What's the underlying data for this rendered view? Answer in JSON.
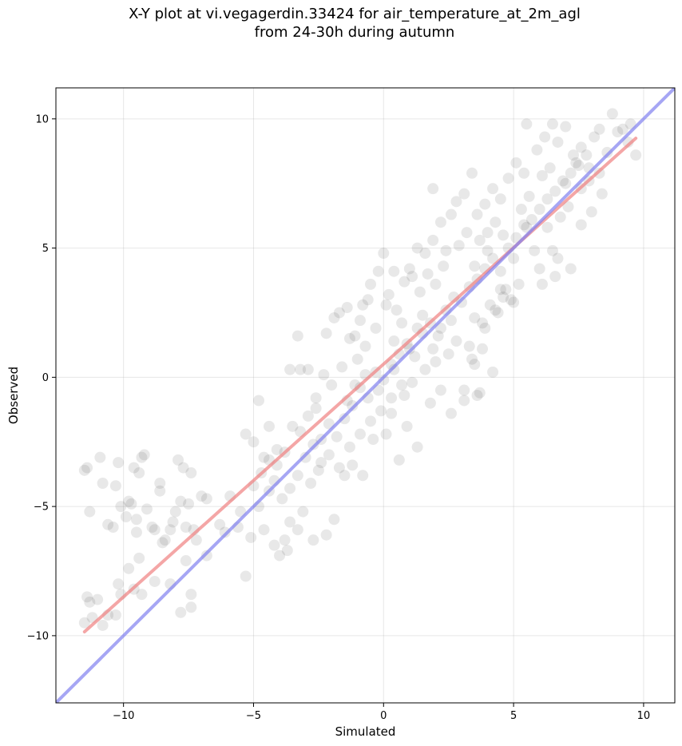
{
  "chart_data": {
    "type": "scatter",
    "title": "X-Y plot at vi.vegagerdin.33424 for air_temperature_at_2m_agl",
    "subtitle": "from 24-30h during autumn",
    "xlabel": "Simulated",
    "ylabel": "Observed",
    "xlim": [
      -12.6,
      11.2
    ],
    "ylim": [
      -12.6,
      11.2
    ],
    "xticks": [
      -10,
      -5,
      0,
      5,
      10
    ],
    "yticks": [
      -10,
      -5,
      0,
      5,
      10
    ],
    "xtick_labels": [
      "−10",
      "−5",
      "0",
      "5",
      "10"
    ],
    "ytick_labels": [
      "−10",
      "−5",
      "0",
      "5",
      "10"
    ],
    "grid": true,
    "point_color": "#000000",
    "point_alpha": 0.09,
    "points": [
      [
        -11.5,
        -3.6
      ],
      [
        -11.4,
        -3.5
      ],
      [
        -11.3,
        -5.2
      ],
      [
        -10.9,
        -3.1
      ],
      [
        -10.8,
        -4.1
      ],
      [
        -10.6,
        -5.7
      ],
      [
        -10.4,
        -5.8
      ],
      [
        -10.3,
        -4.2
      ],
      [
        -10.2,
        -3.3
      ],
      [
        -10.1,
        -5.0
      ],
      [
        -9.9,
        -5.4
      ],
      [
        -9.8,
        -4.8
      ],
      [
        -9.7,
        -4.9
      ],
      [
        -9.6,
        -3.5
      ],
      [
        -9.5,
        -5.5
      ],
      [
        -9.5,
        -6.0
      ],
      [
        -9.4,
        -3.7
      ],
      [
        -9.3,
        -3.1
      ],
      [
        -9.2,
        -3.0
      ],
      [
        -9.1,
        -5.1
      ],
      [
        -8.9,
        -5.8
      ],
      [
        -8.8,
        -5.9
      ],
      [
        -8.6,
        -4.1
      ],
      [
        -8.6,
        -4.4
      ],
      [
        -8.5,
        -6.4
      ],
      [
        -8.4,
        -6.3
      ],
      [
        -8.2,
        -5.9
      ],
      [
        -8.1,
        -5.6
      ],
      [
        -8.0,
        -5.2
      ],
      [
        -7.9,
        -3.2
      ],
      [
        -7.8,
        -4.8
      ],
      [
        -7.7,
        -3.5
      ],
      [
        -7.6,
        -5.8
      ],
      [
        -7.5,
        -4.9
      ],
      [
        -7.4,
        -3.7
      ],
      [
        -7.3,
        -5.9
      ],
      [
        -7.2,
        -6.3
      ],
      [
        -7.0,
        -4.6
      ],
      [
        -6.8,
        -4.7
      ],
      [
        -6.8,
        -6.9
      ],
      [
        -9.8,
        -7.4
      ],
      [
        -9.6,
        -8.2
      ],
      [
        -9.4,
        -7.0
      ],
      [
        -9.3,
        -8.4
      ],
      [
        -8.8,
        -7.9
      ],
      [
        -8.2,
        -8.0
      ],
      [
        -7.8,
        -9.1
      ],
      [
        -7.4,
        -8.4
      ],
      [
        -7.4,
        -8.9
      ],
      [
        -7.6,
        -7.1
      ],
      [
        -11.5,
        -9.5
      ],
      [
        -11.4,
        -8.5
      ],
      [
        -11.3,
        -8.7
      ],
      [
        -11.2,
        -9.3
      ],
      [
        -11.0,
        -8.6
      ],
      [
        -10.8,
        -9.6
      ],
      [
        -10.6,
        -9.2
      ],
      [
        -10.3,
        -9.2
      ],
      [
        -10.2,
        -8.0
      ],
      [
        -10.1,
        -8.4
      ],
      [
        -6.3,
        -5.7
      ],
      [
        -6.1,
        -6.0
      ],
      [
        -5.9,
        -4.6
      ],
      [
        -5.6,
        -5.8
      ],
      [
        -5.5,
        -5.2
      ],
      [
        -5.3,
        -7.7
      ],
      [
        -5.1,
        -6.2
      ],
      [
        -4.8,
        -5.0
      ],
      [
        -4.6,
        -5.9
      ],
      [
        -4.4,
        -4.4
      ],
      [
        -4.2,
        -6.5
      ],
      [
        -4.0,
        -6.9
      ],
      [
        -3.8,
        -6.3
      ],
      [
        -3.7,
        -6.7
      ],
      [
        -3.6,
        -5.6
      ],
      [
        -3.3,
        -5.9
      ],
      [
        -3.1,
        -5.2
      ],
      [
        -2.7,
        -6.3
      ],
      [
        -2.2,
        -6.1
      ],
      [
        -1.9,
        -5.5
      ],
      [
        -5.3,
        -2.2
      ],
      [
        -5.0,
        -2.5
      ],
      [
        -4.8,
        -0.9
      ],
      [
        -4.6,
        -3.1
      ],
      [
        -4.4,
        -1.9
      ],
      [
        -4.1,
        -2.8
      ],
      [
        -3.6,
        0.3
      ],
      [
        -3.3,
        1.6
      ],
      [
        -3.2,
        0.3
      ],
      [
        -2.9,
        0.3
      ],
      [
        -2.6,
        -1.2
      ],
      [
        -2.4,
        -2.4
      ],
      [
        -2.2,
        1.7
      ],
      [
        -1.9,
        2.3
      ],
      [
        -1.7,
        2.5
      ],
      [
        -1.4,
        2.7
      ],
      [
        -1.1,
        1.6
      ],
      [
        -0.8,
        2.8
      ],
      [
        -0.6,
        3.0
      ],
      [
        -0.2,
        4.1
      ],
      [
        0.0,
        4.8
      ],
      [
        0.4,
        4.1
      ],
      [
        0.8,
        3.7
      ],
      [
        1.0,
        4.2
      ],
      [
        1.3,
        5.0
      ],
      [
        1.6,
        4.8
      ],
      [
        1.9,
        5.3
      ],
      [
        2.2,
        6.0
      ],
      [
        1.9,
        7.3
      ],
      [
        2.6,
        6.3
      ],
      [
        0.9,
        -1.9
      ],
      [
        1.3,
        -2.7
      ],
      [
        1.8,
        -1.0
      ],
      [
        2.2,
        -0.5
      ],
      [
        2.6,
        -1.4
      ],
      [
        3.1,
        -0.9
      ],
      [
        3.4,
        0.7
      ],
      [
        3.7,
        -0.6
      ],
      [
        3.6,
        -0.7
      ],
      [
        4.2,
        0.2
      ],
      [
        -1.5,
        -3.8
      ],
      [
        -1.2,
        -3.4
      ],
      [
        -0.8,
        -3.8
      ],
      [
        -0.4,
        -2.4
      ],
      [
        0.1,
        -2.2
      ],
      [
        0.3,
        -1.4
      ],
      [
        0.6,
        -3.2
      ],
      [
        3.1,
        -0.5
      ],
      [
        3.5,
        0.5
      ],
      [
        3.8,
        1.1
      ],
      [
        3.9,
        6.7
      ],
      [
        4.2,
        7.3
      ],
      [
        4.5,
        6.9
      ],
      [
        4.8,
        7.7
      ],
      [
        5.1,
        8.3
      ],
      [
        5.4,
        7.9
      ],
      [
        5.5,
        9.8
      ],
      [
        5.9,
        8.8
      ],
      [
        6.2,
        9.3
      ],
      [
        6.5,
        9.8
      ],
      [
        6.7,
        9.1
      ],
      [
        7.0,
        9.7
      ],
      [
        7.4,
        8.3
      ],
      [
        7.6,
        8.9
      ],
      [
        7.9,
        8.1
      ],
      [
        8.1,
        9.3
      ],
      [
        8.3,
        9.6
      ],
      [
        8.6,
        8.7
      ],
      [
        8.8,
        10.2
      ],
      [
        9.0,
        9.5
      ],
      [
        9.4,
        9.1
      ],
      [
        9.7,
        8.6
      ],
      [
        8.3,
        7.9
      ],
      [
        7.9,
        7.6
      ],
      [
        7.6,
        7.3
      ],
      [
        7.3,
        8.6
      ],
      [
        7.0,
        7.5
      ],
      [
        6.7,
        4.6
      ],
      [
        6.5,
        4.9
      ],
      [
        6.3,
        5.8
      ],
      [
        6.0,
        4.2
      ],
      [
        5.8,
        4.9
      ],
      [
        5.5,
        5.8
      ],
      [
        5.2,
        3.6
      ],
      [
        4.9,
        3.0
      ],
      [
        4.7,
        3.4
      ],
      [
        4.4,
        2.5
      ],
      [
        4.1,
        2.8
      ],
      [
        3.8,
        2.1
      ],
      [
        3.5,
        2.3
      ],
      [
        5.0,
        2.9
      ],
      [
        4.5,
        3.4
      ],
      [
        6.1,
        3.6
      ],
      [
        6.6,
        3.9
      ],
      [
        7.2,
        4.2
      ],
      [
        7.6,
        5.9
      ],
      [
        8.0,
        6.4
      ],
      [
        8.4,
        7.1
      ],
      [
        9.2,
        9.6
      ],
      [
        9.5,
        9.8
      ],
      [
        3.4,
        7.9
      ],
      [
        3.1,
        7.1
      ],
      [
        2.8,
        6.8
      ],
      [
        3.6,
        6.3
      ],
      [
        4.0,
        5.6
      ],
      [
        4.3,
        6.0
      ],
      [
        2.4,
        4.9
      ],
      [
        2.0,
        3.6
      ],
      [
        1.5,
        2.4
      ],
      [
        1.1,
        3.9
      ],
      [
        0.7,
        2.1
      ],
      [
        0.4,
        1.4
      ],
      [
        0.1,
        2.8
      ],
      [
        -0.3,
        1.9
      ],
      [
        -0.7,
        1.2
      ],
      [
        -1.0,
        0.7
      ],
      [
        -1.3,
        1.5
      ],
      [
        -1.6,
        0.4
      ],
      [
        -2.0,
        -0.3
      ],
      [
        -2.3,
        0.1
      ],
      [
        -2.6,
        -0.8
      ],
      [
        -2.9,
        -1.5
      ],
      [
        -3.2,
        -2.1
      ],
      [
        -3.5,
        -1.9
      ],
      [
        -3.8,
        -2.9
      ],
      [
        -4.1,
        -3.4
      ],
      [
        -4.4,
        -3.2
      ],
      [
        -4.7,
        -3.7
      ],
      [
        -5.0,
        -4.2
      ],
      [
        -4.2,
        -4.0
      ],
      [
        -3.9,
        -4.7
      ],
      [
        -3.6,
        -4.3
      ],
      [
        -3.3,
        -3.8
      ],
      [
        -3.0,
        -3.1
      ],
      [
        -2.7,
        -2.6
      ],
      [
        -2.4,
        -3.3
      ],
      [
        -2.1,
        -1.8
      ],
      [
        -1.8,
        -2.3
      ],
      [
        -1.5,
        -1.6
      ],
      [
        -1.2,
        -1.1
      ],
      [
        -0.9,
        -0.4
      ],
      [
        -0.6,
        -0.8
      ],
      [
        -0.3,
        0.2
      ],
      [
        0.0,
        -0.1
      ],
      [
        0.3,
        0.5
      ],
      [
        0.6,
        0.9
      ],
      [
        0.9,
        1.3
      ],
      [
        1.2,
        0.8
      ],
      [
        1.5,
        1.7
      ],
      [
        1.8,
        2.1
      ],
      [
        2.1,
        1.6
      ],
      [
        2.4,
        2.6
      ],
      [
        2.7,
        3.1
      ],
      [
        3.0,
        2.9
      ],
      [
        3.3,
        3.5
      ],
      [
        3.6,
        3.8
      ],
      [
        3.9,
        4.2
      ],
      [
        4.2,
        4.6
      ],
      [
        4.5,
        4.1
      ],
      [
        4.8,
        5.0
      ],
      [
        5.1,
        5.4
      ],
      [
        5.4,
        5.9
      ],
      [
        5.7,
        6.1
      ],
      [
        6.0,
        6.5
      ],
      [
        6.3,
        6.9
      ],
      [
        6.6,
        7.2
      ],
      [
        6.9,
        7.6
      ],
      [
        7.2,
        7.9
      ],
      [
        7.5,
        8.2
      ],
      [
        7.8,
        8.6
      ],
      [
        -0.5,
        3.6
      ],
      [
        -0.9,
        2.2
      ],
      [
        0.2,
        3.2
      ],
      [
        0.5,
        2.6
      ],
      [
        1.4,
        3.3
      ],
      [
        1.7,
        4.0
      ],
      [
        2.3,
        4.3
      ],
      [
        2.9,
        5.1
      ],
      [
        3.2,
        5.6
      ],
      [
        3.7,
        5.3
      ],
      [
        0.8,
        -0.7
      ],
      [
        1.1,
        -0.2
      ],
      [
        1.6,
        0.3
      ],
      [
        2.0,
        0.6
      ],
      [
        2.5,
        0.9
      ],
      [
        2.8,
        1.4
      ],
      [
        3.3,
        1.2
      ],
      [
        3.9,
        1.9
      ],
      [
        4.3,
        2.6
      ],
      [
        4.6,
        3.1
      ],
      [
        -2.8,
        -4.1
      ],
      [
        -2.5,
        -3.6
      ],
      [
        -2.1,
        -3.0
      ],
      [
        -1.7,
        -3.5
      ],
      [
        -1.3,
        -2.7
      ],
      [
        -0.9,
        -2.2
      ],
      [
        -0.5,
        -1.7
      ],
      [
        -0.1,
        -1.3
      ],
      [
        0.3,
        -0.8
      ],
      [
        0.7,
        -0.3
      ],
      [
        5.3,
        6.5
      ],
      [
        5.6,
        7.0
      ],
      [
        6.1,
        7.8
      ],
      [
        6.4,
        8.1
      ],
      [
        6.8,
        6.2
      ],
      [
        7.1,
        6.6
      ],
      [
        5.0,
        4.6
      ],
      [
        4.6,
        5.5
      ],
      [
        4.0,
        4.9
      ],
      [
        3.5,
        4.3
      ],
      [
        1.9,
        1.1
      ],
      [
        2.2,
        1.9
      ],
      [
        2.6,
        2.2
      ],
      [
        1.3,
        1.9
      ],
      [
        1.0,
        1.1
      ],
      [
        0.4,
        0.3
      ],
      [
        -0.2,
        -0.5
      ],
      [
        -0.7,
        0.1
      ],
      [
        -1.1,
        -0.3
      ],
      [
        -1.4,
        -0.9
      ]
    ],
    "series": [
      {
        "type": "regression",
        "color": "#f08080",
        "x": [
          -11.5,
          9.7
        ],
        "y": [
          -9.85,
          9.25
        ]
      },
      {
        "type": "identity",
        "color": "#8080f0",
        "x": [
          -12.6,
          11.2
        ],
        "y": [
          -12.6,
          11.2
        ]
      }
    ]
  }
}
